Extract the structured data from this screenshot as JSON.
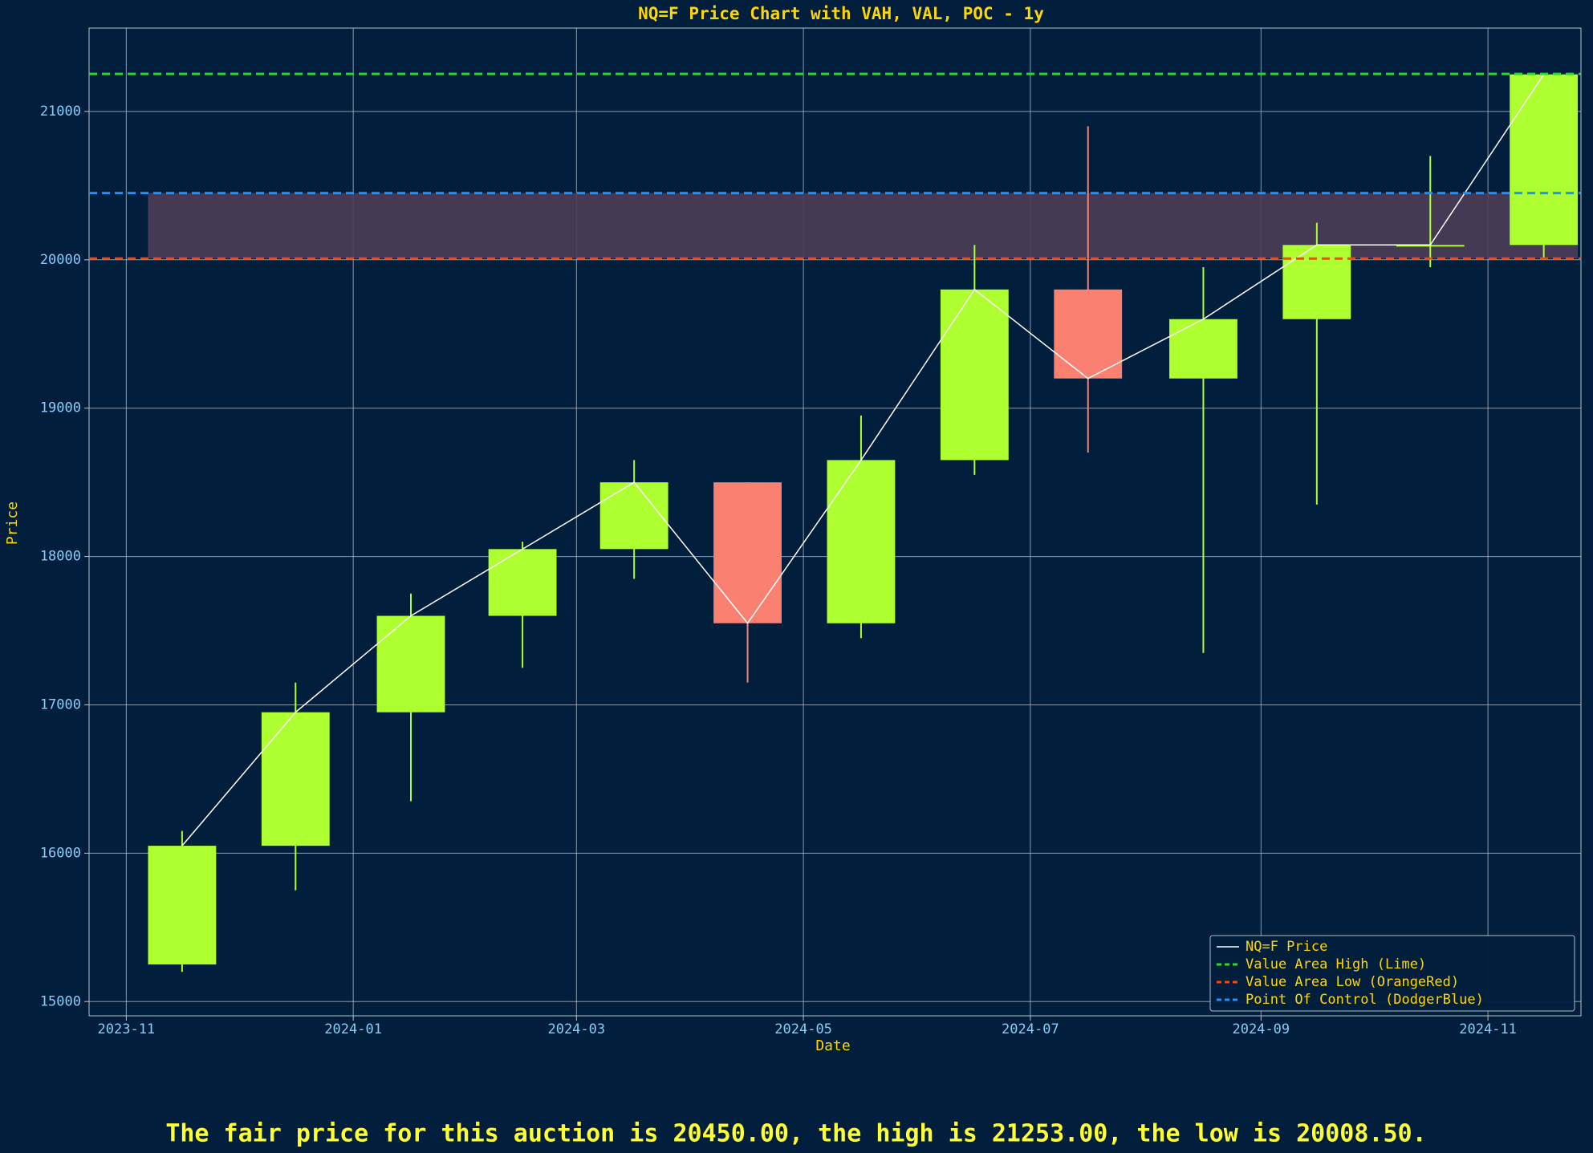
{
  "chart_data": {
    "type": "candlestick",
    "title": "NQ=F Price Chart with VAH, VAL, POC - 1y",
    "xlabel": "Date",
    "ylabel": "Price",
    "series_name": "NQ=F Price",
    "x": [
      "2023-11",
      "2023-12",
      "2024-01",
      "2024-02",
      "2024-03",
      "2024-04",
      "2024-05",
      "2024-06",
      "2024-07",
      "2024-08",
      "2024-09",
      "2024-10",
      "2024-11"
    ],
    "open": [
      15250,
      16050,
      16950,
      17600,
      18050,
      18500,
      17550,
      18650,
      19800,
      19200,
      19600,
      20100,
      20100
    ],
    "high": [
      16150,
      17150,
      17750,
      18100,
      18650,
      18500,
      18950,
      20100,
      20900,
      19950,
      20250,
      20700,
      21253
    ],
    "low": [
      15200,
      15750,
      16350,
      17250,
      17850,
      17150,
      17450,
      18550,
      18700,
      17350,
      18350,
      19950,
      20000
    ],
    "close": [
      16050,
      16950,
      17600,
      18050,
      18500,
      17550,
      18650,
      19800,
      19200,
      19600,
      20100,
      20100,
      21250
    ],
    "up_color": "#adff2f",
    "down_color": "#fa8072",
    "line_color": "#ffffff",
    "hlines": [
      {
        "name": "Value Area High (Lime)",
        "value": 21253,
        "color": "#22e022"
      },
      {
        "name": "Value Area Low (OrangeRed)",
        "value": 20008.5,
        "color": "#ff4500"
      },
      {
        "name": "Point Of Control (DodgerBlue)",
        "value": 20450,
        "color": "#1e90ff"
      }
    ],
    "value_area_color": "#4b3d57",
    "xlim": [
      "2023-10-22",
      "2024-11-26"
    ],
    "xticks": [
      "2023-11",
      "2024-01",
      "2024-03",
      "2024-05",
      "2024-07",
      "2024-09",
      "2024-11"
    ],
    "ylim": [
      14904,
      21562
    ],
    "yticks": [
      15000,
      16000,
      17000,
      18000,
      19000,
      20000,
      21000
    ],
    "grid": true,
    "legend": "lower right",
    "footer": "The fair price for this auction is 20450.00, the high is 21253.00, the low is 20008.50."
  }
}
